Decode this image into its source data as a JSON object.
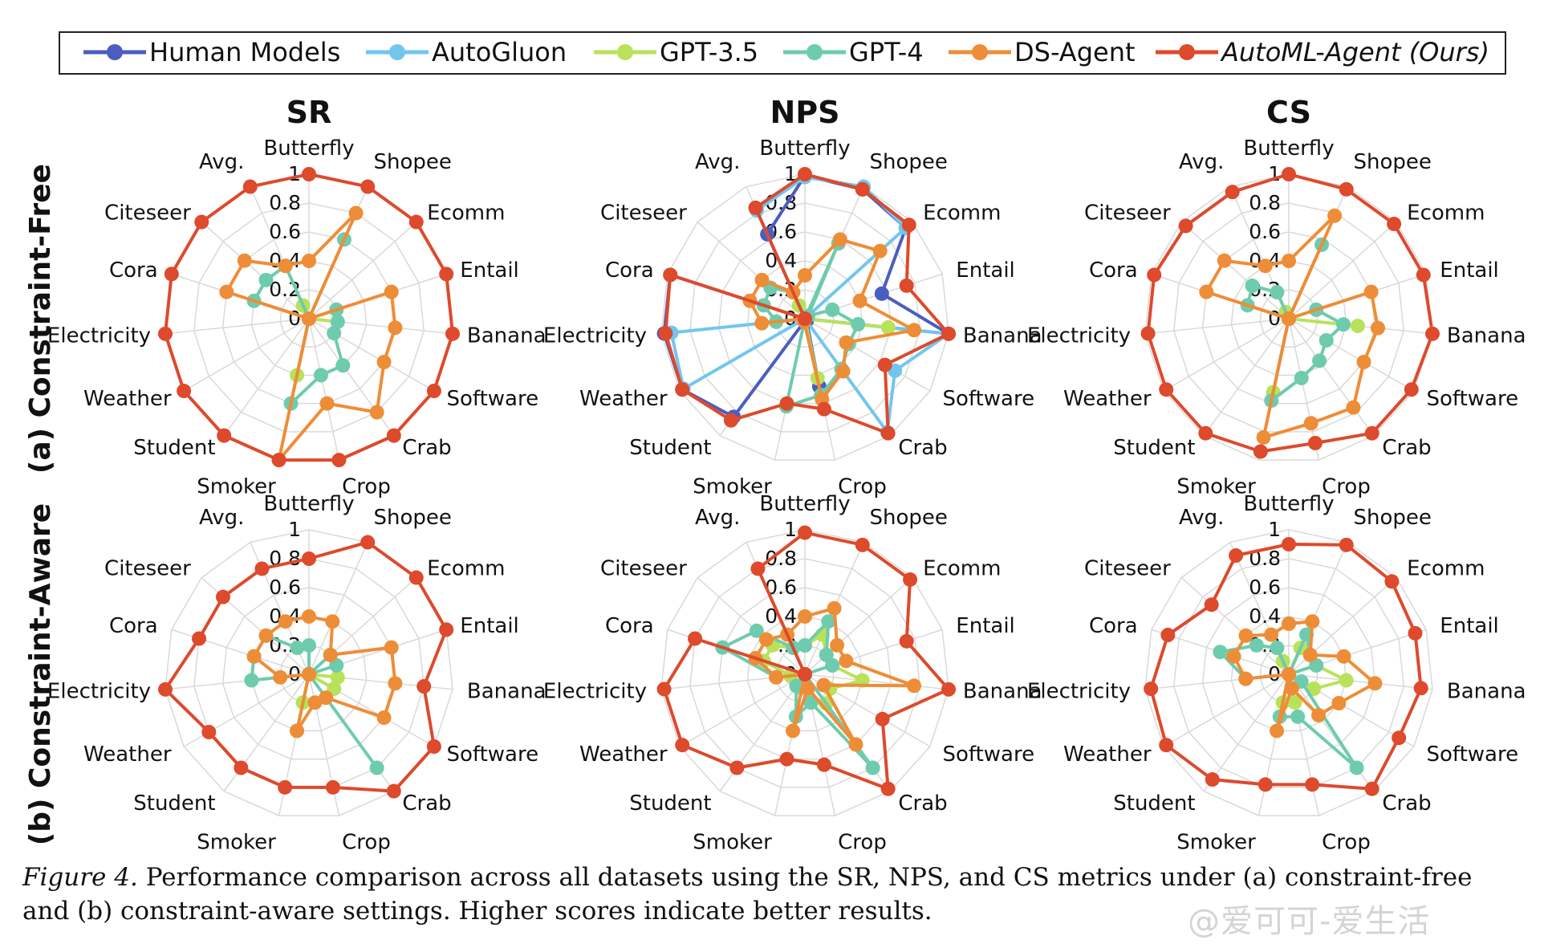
{
  "legend": [
    {
      "name": "Human Models",
      "color": "#4A5DC0",
      "italic": false
    },
    {
      "name": "AutoGluon",
      "color": "#72C6EE",
      "italic": false
    },
    {
      "name": "GPT-3.5",
      "color": "#B8E25A",
      "italic": false
    },
    {
      "name": "GPT-4",
      "color": "#6ECBAE",
      "italic": false
    },
    {
      "name": "DS-Agent",
      "color": "#EE8D37",
      "italic": false
    },
    {
      "name": "AutoML-Agent (Ours)",
      "color": "#DD4A2C",
      "italic": true
    }
  ],
  "row_labels": [
    "(a) Constraint-Free",
    "(b) Constraint-Aware"
  ],
  "caption": {
    "lead": "Figure 4.",
    "text": " Performance comparison across all datasets using the SR, NPS, and CS metrics under (a) constraint-free and (b) constraint-aware settings. Higher scores indicate better results."
  },
  "watermark": "@爱可可-爱生活",
  "chart_data": [
    {
      "type": "radar",
      "title": "SR",
      "row": "(a) Constraint-Free",
      "categories": [
        "Butterfly",
        "Shopee",
        "Ecomm",
        "Entail",
        "Banana",
        "Software",
        "Crab",
        "Crop",
        "Smoker",
        "Student",
        "Weather",
        "Electricity",
        "Cora",
        "Citeseer",
        "Avg."
      ],
      "rlim": [
        0,
        1
      ],
      "ticks": [
        "0",
        "0.2",
        "0.4",
        "0.6",
        "0.8",
        "1"
      ],
      "series": [
        {
          "name": "GPT-3.5",
          "values": [
            0,
            0,
            0,
            0.2,
            0.2,
            0,
            0,
            0,
            0.4,
            0,
            0,
            0,
            0,
            0,
            0.1
          ]
        },
        {
          "name": "GPT-4",
          "values": [
            0,
            0.6,
            0,
            0.2,
            0.2,
            0.2,
            0.4,
            0.4,
            0.6,
            0,
            0,
            0,
            0.4,
            0.4,
            0.4
          ]
        },
        {
          "name": "DS-Agent",
          "values": [
            0.4,
            0.8,
            0,
            0.6,
            0.6,
            0.6,
            0.8,
            0.6,
            1,
            0,
            0,
            0,
            0.6,
            0.6,
            0.4
          ]
        },
        {
          "name": "AutoML-Agent (Ours)",
          "values": [
            1,
            1,
            1,
            1,
            1,
            1,
            1,
            1,
            1,
            1,
            1,
            1,
            1,
            1,
            1
          ]
        }
      ]
    },
    {
      "type": "radar",
      "title": "NPS",
      "row": "(a) Constraint-Free",
      "categories": [
        "Butterfly",
        "Shopee",
        "Ecomm",
        "Entail",
        "Banana",
        "Software",
        "Crab",
        "Crop",
        "Smoker",
        "Student",
        "Weather",
        "Electricity",
        "Cora",
        "Citeseer",
        "Avg."
      ],
      "rlim": [
        0,
        1
      ],
      "ticks": [
        "0",
        "0.2",
        "0.4",
        "0.6",
        "0.8",
        "1"
      ],
      "series": [
        {
          "name": "Human Models",
          "values": [
            0.99,
            0.98,
            0.94,
            0.56,
            1,
            0,
            0.02,
            0.48,
            0.02,
            0.84,
            0.98,
            0.98,
            0.98,
            0,
            0.64
          ]
        },
        {
          "name": "AutoGluon",
          "values": [
            0.98,
            1,
            0.94,
            0,
            1,
            0.72,
            0.97,
            0,
            0,
            0,
            0.97,
            0.93,
            0,
            0,
            0.82
          ]
        },
        {
          "name": "GPT-3.5",
          "values": [
            0,
            0,
            0,
            0,
            0.58,
            0,
            0,
            0.42,
            0,
            0,
            0,
            0.2,
            0,
            0,
            0.1
          ]
        },
        {
          "name": "GPT-4",
          "values": [
            0,
            0.57,
            0.03,
            0.2,
            0.37,
            0.35,
            0.43,
            0.54,
            0.62,
            0,
            0,
            0.2,
            0.3,
            0.32,
            0.2
          ]
        },
        {
          "name": "DS-Agent",
          "values": [
            0.3,
            0.6,
            0.7,
            0.4,
            0.76,
            0.33,
            0.45,
            0.57,
            0.02,
            0,
            0,
            0.3,
            0.4,
            0.4,
            0.2
          ]
        },
        {
          "name": "AutoML-Agent (Ours)",
          "values": [
            1,
            0.98,
            0.97,
            0.74,
            1,
            0.64,
            0.98,
            0.64,
            0.6,
            0.87,
            0.98,
            0.97,
            0.98,
            0,
            0.84
          ]
        }
      ]
    },
    {
      "type": "radar",
      "title": "CS",
      "row": "(a) Constraint-Free",
      "categories": [
        "Butterfly",
        "Shopee",
        "Ecomm",
        "Entail",
        "Banana",
        "Software",
        "Crab",
        "Crop",
        "Smoker",
        "Student",
        "Weather",
        "Electricity",
        "Cora",
        "Citeseer",
        "Avg."
      ],
      "rlim": [
        0,
        1
      ],
      "ticks": [
        "0",
        "0.2",
        "0.4",
        "0.6",
        "0.8",
        "1"
      ],
      "series": [
        {
          "name": "GPT-3.5",
          "values": [
            0,
            0,
            0,
            0,
            0.48,
            0,
            0,
            0,
            0.52,
            0,
            0,
            0,
            0,
            0,
            0.05
          ]
        },
        {
          "name": "GPT-4",
          "values": [
            0,
            0.56,
            0,
            0.2,
            0.38,
            0.3,
            0.36,
            0.42,
            0.58,
            0,
            0,
            0,
            0.3,
            0.34,
            0.2
          ]
        },
        {
          "name": "DS-Agent",
          "values": [
            0.4,
            0.78,
            0,
            0.6,
            0.62,
            0.6,
            0.76,
            0.74,
            0.84,
            0,
            0,
            0,
            0.6,
            0.6,
            0.4
          ]
        },
        {
          "name": "AutoML-Agent (Ours)",
          "values": [
            1,
            0.98,
            0.98,
            0.98,
            1,
            0.98,
            0.98,
            0.88,
            0.94,
            0.98,
            0.98,
            0.98,
            0.98,
            0.96,
            0.96
          ]
        }
      ]
    },
    {
      "type": "radar",
      "title": "",
      "row": "(b) Constraint-Aware",
      "categories": [
        "Butterfly",
        "Shopee",
        "Ecomm",
        "Entail",
        "Banana",
        "Software",
        "Crab",
        "Crop",
        "Smoker",
        "Student",
        "Weather",
        "Electricity",
        "Cora",
        "Citeseer",
        "Avg."
      ],
      "rlim": [
        0,
        1
      ],
      "ticks": [
        "0",
        "0.2",
        "0.4",
        "0.6",
        "0.8",
        "1"
      ],
      "series": [
        {
          "name": "GPT-3.5",
          "values": [
            0,
            0,
            0,
            0,
            0.2,
            0.2,
            0,
            0,
            0.2,
            0,
            0,
            0,
            0,
            0,
            0
          ]
        },
        {
          "name": "GPT-4",
          "values": [
            0.2,
            0,
            0.2,
            0.2,
            0,
            0,
            0.8,
            0,
            0.4,
            0,
            0,
            0.4,
            0.4,
            0.4,
            0.2
          ]
        },
        {
          "name": "DS-Agent",
          "values": [
            0.4,
            0.4,
            0.2,
            0.6,
            0.6,
            0.6,
            0.2,
            0.2,
            0.4,
            0,
            0,
            0.2,
            0.4,
            0.4,
            0.4
          ]
        },
        {
          "name": "AutoML-Agent (Ours)",
          "values": [
            0.8,
            1,
            1,
            1,
            0.8,
            1,
            1,
            0.8,
            0.8,
            0.8,
            0.8,
            1,
            0.8,
            0.8,
            0.8
          ]
        }
      ]
    },
    {
      "type": "radar",
      "title": "",
      "row": "(b) Constraint-Aware",
      "categories": [
        "Butterfly",
        "Shopee",
        "Ecomm",
        "Entail",
        "Banana",
        "Software",
        "Crab",
        "Crop",
        "Smoker",
        "Student",
        "Weather",
        "Electricity",
        "Cora",
        "Citeseer",
        "Avg."
      ],
      "rlim": [
        0,
        1
      ],
      "ticks": [
        "0",
        "0.2",
        "0.4",
        "0.6",
        "0.8",
        "1"
      ],
      "series": [
        {
          "name": "GPT-3.5",
          "values": [
            0.2,
            0.3,
            0.2,
            0.2,
            0.4,
            0.2,
            0.25,
            0.2,
            0.1,
            0,
            0,
            0.1,
            0.3,
            0.3,
            0.2
          ]
        },
        {
          "name": "GPT-4",
          "values": [
            0.2,
            0.4,
            0.2,
            0.2,
            0,
            0,
            0.8,
            0.2,
            0.3,
            0.1,
            0,
            0.2,
            0.6,
            0.45,
            0.2
          ]
        },
        {
          "name": "DS-Agent",
          "values": [
            0.4,
            0.5,
            0.3,
            0.3,
            0.76,
            0.15,
            0.6,
            0.1,
            0.4,
            0,
            0,
            0.2,
            0.36,
            0.36,
            0.3
          ]
        },
        {
          "name": "AutoML-Agent (Ours)",
          "values": [
            0.98,
            0.98,
            0.98,
            0.74,
            1,
            0.62,
            0.98,
            0.64,
            0.6,
            0.8,
            0.98,
            0.98,
            0.8,
            0,
            0.8
          ]
        }
      ]
    },
    {
      "type": "radar",
      "title": "",
      "row": "(b) Constraint-Aware",
      "categories": [
        "Butterfly",
        "Shopee",
        "Ecomm",
        "Entail",
        "Banana",
        "Software",
        "Crab",
        "Crop",
        "Smoker",
        "Student",
        "Weather",
        "Electricity",
        "Cora",
        "Citeseer",
        "Avg."
      ],
      "rlim": [
        0,
        1
      ],
      "ticks": [
        "0",
        "0.2",
        "0.4",
        "0.6",
        "0.8",
        "1"
      ],
      "series": [
        {
          "name": "GPT-3.5",
          "values": [
            0,
            0.2,
            0,
            0.2,
            0.4,
            0.2,
            0,
            0.2,
            0.2,
            0,
            0,
            0,
            0,
            0,
            0.1
          ]
        },
        {
          "name": "GPT-4",
          "values": [
            0,
            0.3,
            0.2,
            0.2,
            0,
            0.1,
            0.8,
            0.3,
            0.3,
            0,
            0,
            0.3,
            0.5,
            0.3,
            0.2
          ]
        },
        {
          "name": "DS-Agent",
          "values": [
            0.35,
            0.4,
            0.2,
            0.4,
            0.6,
            0.4,
            0.35,
            0.1,
            0.4,
            0,
            0,
            0.3,
            0.4,
            0.4,
            0.3
          ]
        },
        {
          "name": "AutoML-Agent (Ours)",
          "values": [
            0.9,
            0.98,
            0.96,
            0.92,
            0.92,
            0.88,
            0.98,
            0.78,
            0.78,
            0.9,
            0.98,
            0.96,
            0.88,
            0.72,
            0.9
          ]
        }
      ]
    }
  ]
}
